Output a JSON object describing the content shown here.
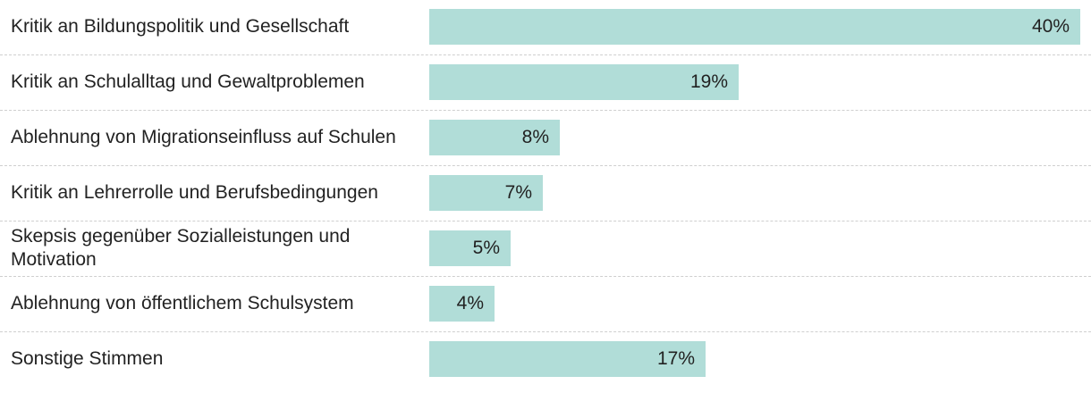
{
  "chart_data": {
    "type": "bar",
    "orientation": "horizontal",
    "categories": [
      "Kritik an Bildungspolitik und Gesellschaft",
      "Kritik an Schulalltag und Gewaltproblemen",
      "Ablehnung von Migrationseinfluss auf Schulen",
      "Kritik an Lehrerrolle und Berufsbedingungen",
      "Skepsis gegenüber Sozialleistungen und Motivation",
      "Ablehnung von öffentlichem Schulsystem",
      "Sonstige Stimmen"
    ],
    "values": [
      40,
      19,
      8,
      7,
      5,
      4,
      17
    ],
    "value_labels": [
      "40%",
      "19%",
      "8%",
      "7%",
      "5%",
      "4%",
      "17%"
    ],
    "unit": "%",
    "xlim": [
      0,
      40
    ],
    "title": "",
    "xlabel": "",
    "ylabel": "",
    "grid": false,
    "bar_color": "#b1ddd8"
  }
}
